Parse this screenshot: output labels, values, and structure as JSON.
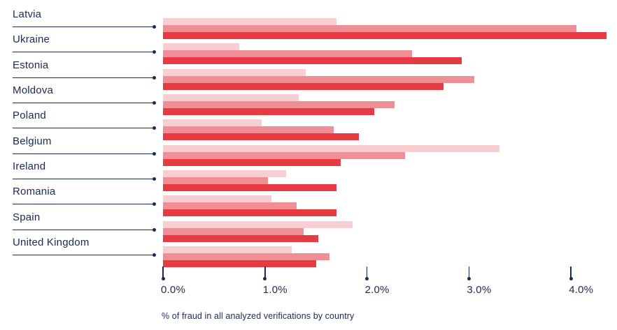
{
  "chart_data": {
    "type": "bar",
    "orientation": "horizontal",
    "title": "",
    "caption": "% of fraud in all analyzed verifications by country",
    "categories": [
      "Latvia",
      "Ukraine",
      "Estonia",
      "Moldova",
      "Poland",
      "Belgium",
      "Ireland",
      "Romania",
      "Spain",
      "United Kingdom"
    ],
    "series": [
      {
        "name": "light-pink-bar",
        "color": "#F8CED3",
        "values": [
          1.7,
          0.75,
          1.4,
          1.33,
          0.97,
          3.3,
          1.21,
          1.06,
          1.86,
          1.26
        ]
      },
      {
        "name": "medium-pink-bar",
        "color": "#EF8E95",
        "values": [
          4.05,
          2.44,
          3.05,
          2.27,
          1.67,
          2.37,
          1.03,
          1.31,
          1.38,
          1.63
        ]
      },
      {
        "name": "dark-red-bar",
        "color": "#E63B42",
        "values": [
          4.35,
          2.93,
          2.75,
          2.07,
          1.92,
          1.74,
          1.7,
          1.7,
          1.52,
          1.5
        ]
      }
    ],
    "x_ticks": [
      "0.0%",
      "1.0%",
      "2.0%",
      "3.0%",
      "4.0%"
    ],
    "x_tick_values": [
      0,
      1,
      2,
      3,
      4
    ],
    "xlim": [
      0,
      4.45
    ],
    "grid": false,
    "legend": false,
    "colors": {
      "text_navy": "#1B2B4D",
      "bar_light": "#F8CED3",
      "bar_medium": "#EF8E95",
      "bar_dark": "#E63B42",
      "background": "#FFFFFF"
    }
  }
}
